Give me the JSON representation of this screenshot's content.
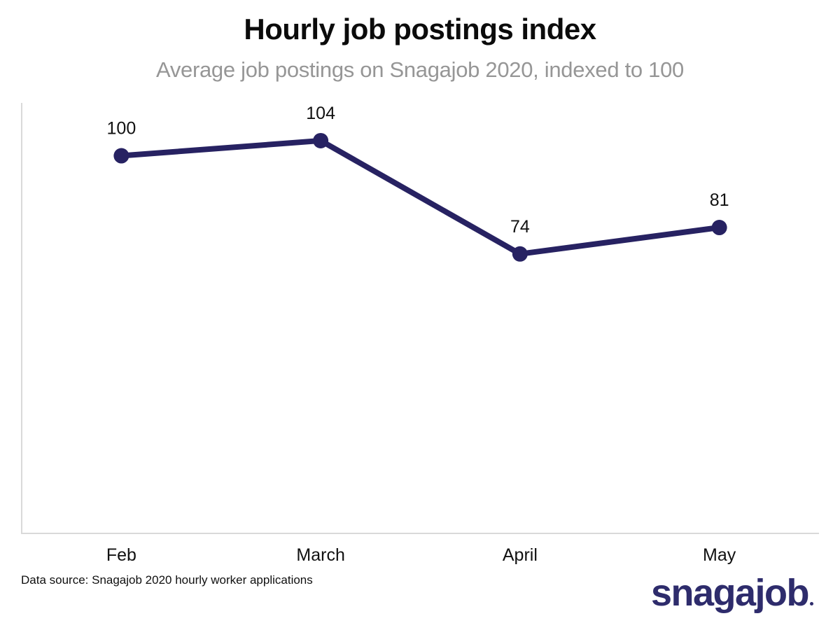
{
  "chart_data": {
    "type": "line",
    "title": "Hourly job postings index",
    "subtitle": "Average job postings on Snagajob 2020, indexed to 100",
    "categories": [
      "Feb",
      "March",
      "April",
      "May"
    ],
    "values": [
      100,
      104,
      74,
      81
    ],
    "xlabel": "",
    "ylabel": "",
    "ylim": [
      0,
      114
    ],
    "grid": false,
    "legend": false,
    "line_color": "#272262",
    "marker_color": "#272262",
    "value_label_color": "#111111",
    "tick_label_color": "#111111",
    "axis_color": "#d9d9d9"
  },
  "footer": {
    "data_source": "Data source: Snagajob 2020 hourly worker applications",
    "logo_text": "snagajob"
  },
  "colors": {
    "background": "#ffffff",
    "title": "#0b0b0b",
    "subtitle": "#969696",
    "logo": "#2e2c6c"
  }
}
